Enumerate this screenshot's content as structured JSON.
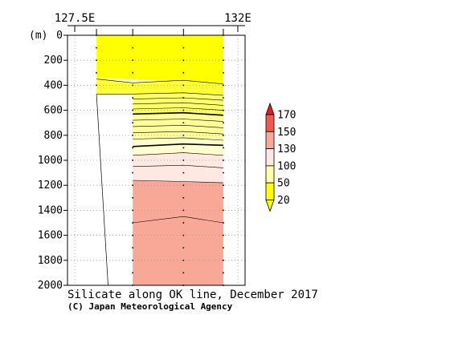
{
  "chart_data": {
    "type": "contour-section",
    "title": "Silicate along OK line, December 2017",
    "credit": "(C) Japan Meteorological Agency",
    "xaxis": {
      "top_labels": [
        {
          "lon": 127.5,
          "label": "127.5E"
        },
        {
          "lon": 132,
          "label": "132E"
        }
      ],
      "range": [
        127.3,
        132.2
      ]
    },
    "yaxis": {
      "unit_label": "(m)",
      "range": [
        0,
        2000
      ],
      "ticks": [
        0,
        200,
        400,
        600,
        800,
        1000,
        1200,
        1400,
        1600,
        1800,
        2000
      ],
      "grid": true
    },
    "stations_lon": [
      128.1,
      129.1,
      130.5,
      131.6
    ],
    "bottom_line": [
      [
        128.1,
        470
      ],
      [
        128.42,
        2000
      ]
    ],
    "fields": [
      {
        "band": "20-50",
        "color": "#ffff00",
        "lon": [
          128.1,
          128.35,
          128.35,
          129.1,
          130.5,
          131.6,
          131.6,
          128.1
        ],
        "depth": [
          0,
          0,
          0,
          0,
          0,
          0,
          390,
          340
        ]
      },
      {
        "band": "50-100 (zone 1)",
        "color": "#ffff33",
        "lon": [
          128.1,
          129.1,
          130.5,
          131.6,
          131.6,
          130.5,
          129.1,
          128.1
        ],
        "depth": [
          340,
          380,
          360,
          390,
          470,
          470,
          470,
          470
        ]
      },
      {
        "band": "50-100 (zone 2)",
        "color": "#ffff66",
        "note": "stations 129.1-131.6 only",
        "lon": [
          129.1,
          130.5,
          131.6,
          131.6,
          130.5,
          129.1
        ],
        "depth": [
          470,
          470,
          470,
          640,
          620,
          630
        ]
      },
      {
        "band": "50-100 (zone 3)",
        "color": "#ffff99",
        "lon": [
          129.1,
          130.5,
          131.6,
          131.6,
          130.5,
          129.1
        ],
        "depth": [
          630,
          620,
          640,
          830,
          820,
          830
        ]
      },
      {
        "band": "50-100 (zone 4)",
        "color": "#ffffcc",
        "lon": [
          129.1,
          130.5,
          131.6,
          131.6,
          130.5,
          129.1
        ],
        "depth": [
          830,
          820,
          830,
          960,
          940,
          960
        ]
      },
      {
        "band": "100-130",
        "color": "#fde8e2",
        "lon": [
          129.1,
          130.5,
          131.6,
          131.6,
          130.5,
          129.1
        ],
        "depth": [
          960,
          940,
          960,
          1180,
          1170,
          1160
        ]
      },
      {
        "band": "130-150",
        "color": "#f9a898",
        "lon": [
          129.1,
          130.5,
          131.6,
          131.6,
          130.5,
          129.1
        ],
        "depth": [
          1160,
          1170,
          1180,
          2000,
          2000,
          2000
        ]
      }
    ],
    "contours": [
      {
        "lon": [
          128.1,
          129.1,
          130.5,
          131.6
        ],
        "depth": [
          350,
          380,
          360,
          390
        ],
        "bold": false
      },
      {
        "lon": [
          128.1,
          129.1
        ],
        "depth": [
          470,
          470
        ],
        "bold": false
      },
      {
        "lon": [
          129.1,
          130.5,
          131.6
        ],
        "depth": [
          470,
          460,
          480
        ],
        "bold": false
      },
      {
        "lon": [
          129.1,
          130.5,
          131.6
        ],
        "depth": [
          510,
          500,
          520
        ],
        "bold": false
      },
      {
        "lon": [
          129.1,
          130.5,
          131.6
        ],
        "depth": [
          550,
          540,
          560
        ],
        "bold": false
      },
      {
        "lon": [
          129.1,
          130.5,
          131.6
        ],
        "depth": [
          590,
          580,
          600
        ],
        "bold": false
      },
      {
        "lon": [
          129.1,
          130.5,
          131.6
        ],
        "depth": [
          630,
          620,
          640
        ],
        "bold": true
      },
      {
        "lon": [
          129.1,
          130.5,
          131.6
        ],
        "depth": [
          680,
          670,
          690
        ],
        "bold": false
      },
      {
        "lon": [
          129.1,
          130.5,
          131.6
        ],
        "depth": [
          730,
          720,
          740
        ],
        "bold": false
      },
      {
        "lon": [
          129.1,
          130.5,
          131.6
        ],
        "depth": [
          780,
          770,
          790
        ],
        "bold": false
      },
      {
        "lon": [
          129.1,
          130.5,
          131.6
        ],
        "depth": [
          830,
          820,
          840
        ],
        "bold": false
      },
      {
        "lon": [
          129.1,
          130.5,
          131.6
        ],
        "depth": [
          890,
          870,
          880
        ],
        "bold": true
      },
      {
        "lon": [
          129.1,
          130.5,
          131.6
        ],
        "depth": [
          960,
          940,
          960
        ],
        "bold": false
      },
      {
        "lon": [
          129.1,
          130.5,
          131.6
        ],
        "depth": [
          1050,
          1040,
          1060
        ],
        "bold": false
      },
      {
        "lon": [
          129.1,
          130.5,
          131.6
        ],
        "depth": [
          1160,
          1170,
          1180
        ],
        "bold": false
      },
      {
        "lon": [
          129.1,
          130.5,
          131.6
        ],
        "depth": [
          1500,
          1450,
          1500
        ],
        "bold": false
      }
    ],
    "colorbar": {
      "labels": [
        "170",
        "150",
        "130",
        "100",
        "50",
        "20"
      ],
      "colors_top_to_bottom": [
        "#e81d1d",
        "#ef5a4e",
        "#f9a898",
        "#fde8e2",
        "#ffffaa",
        "#ffff00"
      ]
    }
  }
}
